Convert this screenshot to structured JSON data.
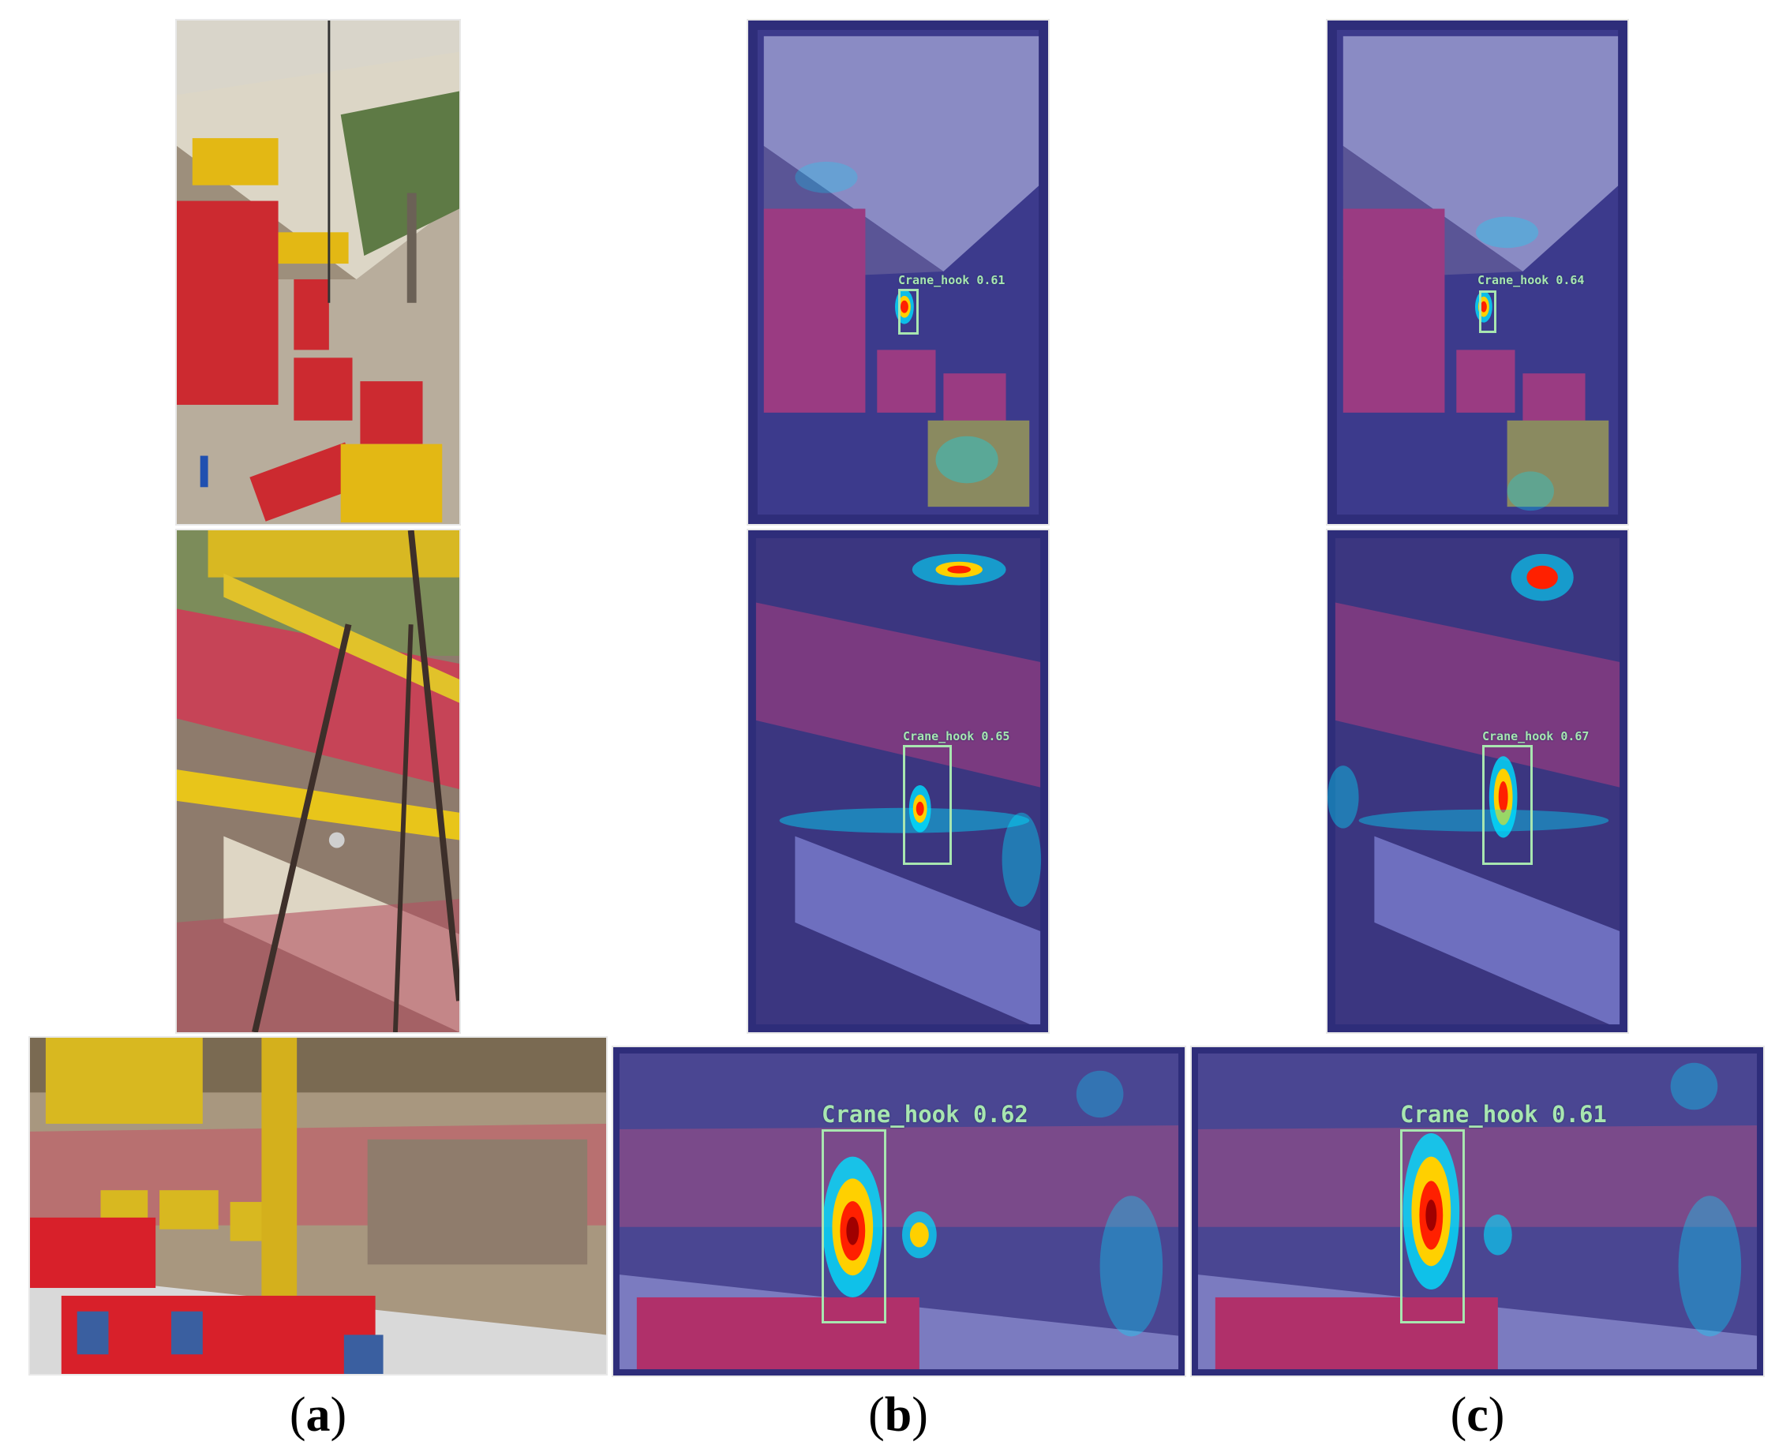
{
  "panels": {
    "a": {
      "caption_prefix": "(",
      "caption_letter": "a",
      "caption_suffix": ")"
    },
    "b": {
      "caption_prefix": "(",
      "caption_letter": "b",
      "caption_suffix": ")",
      "detections": [
        {
          "label": "Crane_hook 0.61"
        },
        {
          "label": "Crane_hook 0.65"
        },
        {
          "label": "Crane_hook 0.62"
        }
      ]
    },
    "c": {
      "caption_prefix": "(",
      "caption_letter": "c",
      "caption_suffix": ")",
      "detections": [
        {
          "label": "Crane_hook 0.64"
        },
        {
          "label": "Crane_hook 0.67"
        },
        {
          "label": "Crane_hook 0.61"
        }
      ]
    }
  },
  "colors": {
    "box": "#a8e6b0",
    "heat_overlay": "#3a3ab0",
    "heat_hot": "#ff2000",
    "heat_warm": "#ffd000",
    "heat_cool": "#00e0ff"
  }
}
